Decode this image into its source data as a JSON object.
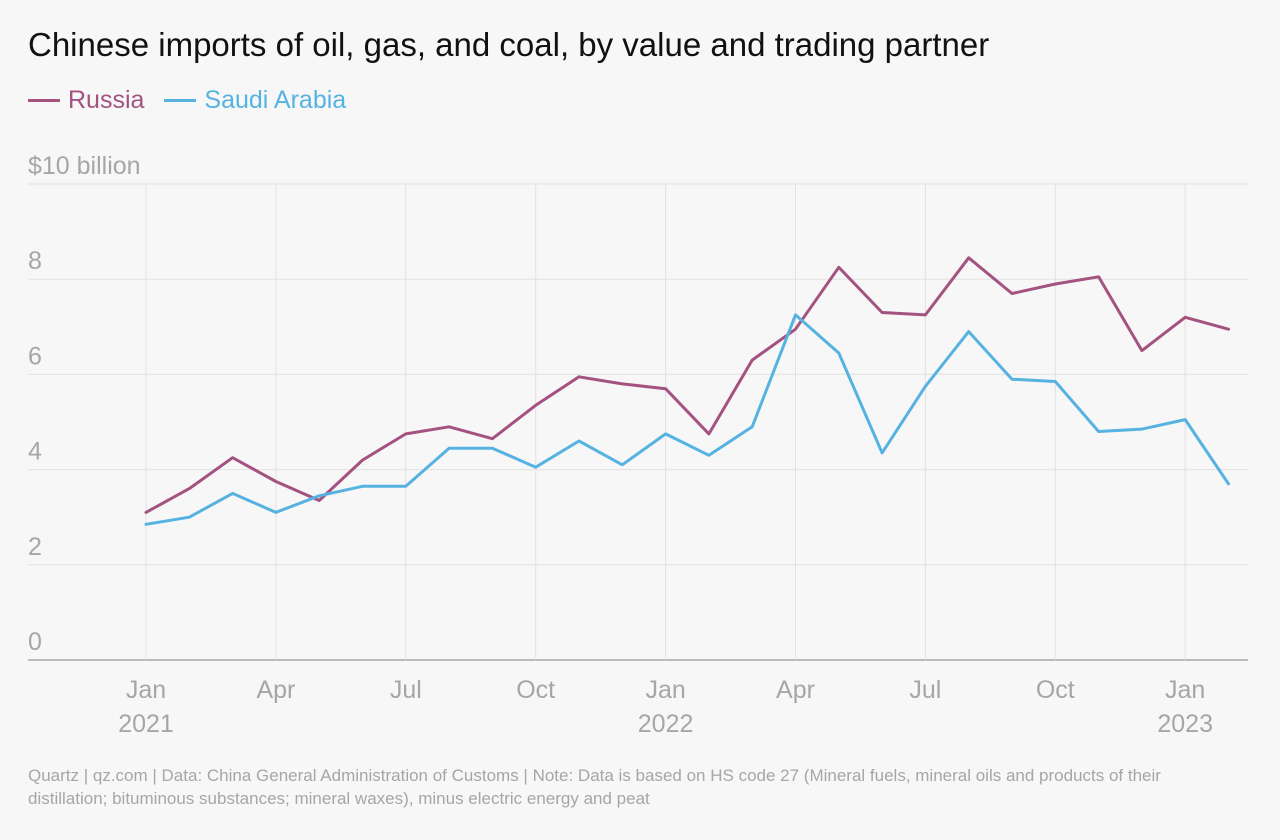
{
  "title": "Chinese imports of oil, gas, and coal, by value and trading partner",
  "footer": "Quartz | qz.com | Data: China General Administration of Customs | Note: Data is based on HS code 27 (Mineral fuels, mineral oils and products of their distillation; bituminous substances; mineral waxes), minus electric energy and peat",
  "colors": {
    "russia": "#a4527f",
    "saudi": "#56b3e1",
    "grid": "#e2e2e2",
    "axis": "#a6a6a6"
  },
  "legend": [
    {
      "label": "Russia",
      "color": "#a4527f"
    },
    {
      "label": "Saudi Arabia",
      "color": "#56b3e1"
    }
  ],
  "chart_data": {
    "type": "line",
    "title": "Chinese imports of oil, gas, and coal, by value and trading partner",
    "ylabel": "",
    "ylim": [
      0,
      10
    ],
    "y_ticks": [
      {
        "value": 0,
        "label": "0"
      },
      {
        "value": 2,
        "label": "2"
      },
      {
        "value": 4,
        "label": "4"
      },
      {
        "value": 6,
        "label": "6"
      },
      {
        "value": 8,
        "label": "8"
      },
      {
        "value": 10,
        "label": "$10 billion"
      }
    ],
    "x_ticks": [
      {
        "x": "2021-01",
        "label": "Jan",
        "year": "2021"
      },
      {
        "x": "2021-04",
        "label": "Apr",
        "year": ""
      },
      {
        "x": "2021-07",
        "label": "Jul",
        "year": ""
      },
      {
        "x": "2021-10",
        "label": "Oct",
        "year": ""
      },
      {
        "x": "2022-01",
        "label": "Jan",
        "year": "2022"
      },
      {
        "x": "2022-04",
        "label": "Apr",
        "year": ""
      },
      {
        "x": "2022-07",
        "label": "Jul",
        "year": ""
      },
      {
        "x": "2022-10",
        "label": "Oct",
        "year": ""
      },
      {
        "x": "2023-01",
        "label": "Jan",
        "year": "2023"
      }
    ],
    "x": [
      "2021-01",
      "2021-02",
      "2021-03",
      "2021-04",
      "2021-05",
      "2021-06",
      "2021-07",
      "2021-08",
      "2021-09",
      "2021-10",
      "2021-11",
      "2021-12",
      "2022-01",
      "2022-02",
      "2022-03",
      "2022-04",
      "2022-05",
      "2022-06",
      "2022-07",
      "2022-08",
      "2022-09",
      "2022-10",
      "2022-11",
      "2022-12",
      "2023-01",
      "2023-02"
    ],
    "series": [
      {
        "name": "Russia",
        "color": "#a4527f",
        "values": [
          3.1,
          3.6,
          4.25,
          3.75,
          3.35,
          4.2,
          4.75,
          4.9,
          4.65,
          5.35,
          5.95,
          5.8,
          5.7,
          4.75,
          6.3,
          6.95,
          8.25,
          7.3,
          7.25,
          8.45,
          7.7,
          7.9,
          8.05,
          6.5,
          7.2,
          6.95
        ]
      },
      {
        "name": "Saudi Arabia",
        "color": "#56b3e1",
        "values": [
          2.85,
          3.0,
          3.5,
          3.1,
          3.45,
          3.65,
          3.65,
          4.45,
          4.45,
          4.05,
          4.6,
          4.1,
          4.75,
          4.3,
          4.9,
          7.25,
          6.45,
          4.35,
          5.75,
          6.9,
          5.9,
          5.85,
          4.8,
          4.85,
          5.05,
          3.7
        ]
      }
    ]
  }
}
